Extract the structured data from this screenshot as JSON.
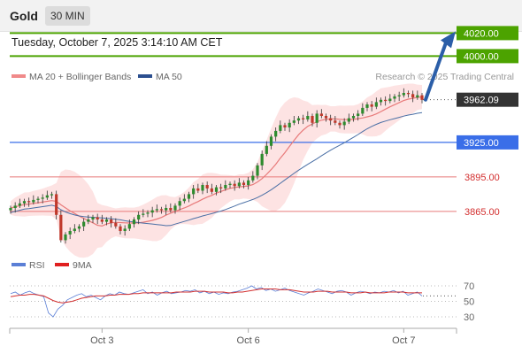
{
  "header": {
    "instrument": "Gold",
    "timeframe": "30 MIN"
  },
  "datetime": "Tuesday, October 7, 2025 3:14:10 AM CET",
  "legend": {
    "ma20": "MA 20 + Bollinger Bands",
    "ma50": "MA 50",
    "source": "Research © 2025 Trading Central"
  },
  "rsi_legend": {
    "rsi": "RSI",
    "ma9": "9MA"
  },
  "colors": {
    "resistance": "#4ca300",
    "support": "#e87a7a",
    "pivot": "#3a6ee8",
    "price_tag": "#333333",
    "arrow": "#2b5ea8",
    "candle_up": "#2e8b2e",
    "candle_down": "#c0392b",
    "ma20": "#e87a7a",
    "ma50": "#4a6fa5",
    "rsi": "#5b7fd6",
    "rsi_ma": "#d23030",
    "band_fill": "#fde3e3"
  },
  "chart_data": [
    {
      "type": "candlestick",
      "x_axis": {
        "ticks": [
          "Oct 3",
          "Oct 6",
          "Oct 7"
        ]
      },
      "y_range": [
        3845,
        4025
      ],
      "levels": [
        {
          "label": "4020.00",
          "value": 4020.0,
          "kind": "resistance"
        },
        {
          "label": "4000.00",
          "value": 4000.0,
          "kind": "resistance"
        },
        {
          "label": "3962.09",
          "value": 3962.09,
          "kind": "last_price"
        },
        {
          "label": "3925.00",
          "value": 3925.0,
          "kind": "pivot"
        },
        {
          "label": "3895.00",
          "value": 3895.0,
          "kind": "support"
        },
        {
          "label": "3865.00",
          "value": 3865.0,
          "kind": "support"
        }
      ],
      "close": [
        3868,
        3870,
        3872,
        3874,
        3873,
        3875,
        3876,
        3877,
        3879,
        3880,
        3862,
        3840,
        3845,
        3848,
        3850,
        3852,
        3856,
        3858,
        3860,
        3858,
        3856,
        3858,
        3855,
        3852,
        3848,
        3850,
        3854,
        3858,
        3862,
        3863,
        3864,
        3866,
        3867,
        3866,
        3868,
        3866,
        3870,
        3874,
        3876,
        3880,
        3885,
        3883,
        3888,
        3885,
        3882,
        3886,
        3885,
        3888,
        3889,
        3887,
        3890,
        3888,
        3892,
        3896,
        3905,
        3915,
        3922,
        3930,
        3935,
        3940,
        3938,
        3942,
        3944,
        3946,
        3945,
        3948,
        3942,
        3950,
        3948,
        3946,
        3944,
        3942,
        3940,
        3943,
        3946,
        3948,
        3950,
        3955,
        3958,
        3956,
        3960,
        3962,
        3961,
        3963,
        3965,
        3966,
        3968,
        3967,
        3964,
        3966,
        3962
      ],
      "ma20_last": 3955,
      "ma50_last": 3940
    },
    {
      "type": "line",
      "title": "RSI",
      "y_ticks": [
        70,
        50,
        30
      ],
      "series": [
        {
          "name": "RSI",
          "values": [
            60,
            62,
            58,
            61,
            63,
            60,
            58,
            56,
            35,
            30,
            40,
            45,
            52,
            55,
            58,
            60,
            56,
            58,
            55,
            52,
            57,
            60,
            58,
            62,
            60,
            59,
            61,
            63,
            65,
            60,
            62,
            58,
            61,
            63,
            60,
            61,
            62,
            64,
            63,
            65,
            61,
            63,
            60,
            62,
            59,
            61,
            60,
            62,
            63,
            65,
            67,
            70,
            66,
            68,
            64,
            66,
            63,
            65,
            67,
            64,
            62,
            60,
            58,
            61,
            63,
            66,
            64,
            62,
            60,
            63,
            64,
            62,
            58,
            61,
            63,
            62,
            60,
            62,
            61,
            63,
            62,
            64,
            61,
            63,
            58,
            60,
            62,
            57
          ]
        },
        {
          "name": "9MA",
          "values": [
            56,
            57,
            58,
            58,
            59,
            59,
            58,
            57,
            54,
            51,
            49,
            48,
            49,
            50,
            52,
            54,
            55,
            56,
            57,
            57,
            57,
            58,
            58,
            59,
            59,
            59,
            60,
            60,
            61,
            61,
            61,
            61,
            61,
            61,
            61,
            62,
            62,
            62,
            62,
            63,
            63,
            63,
            62,
            62,
            62,
            62,
            61,
            61,
            62,
            62,
            63,
            64,
            65,
            66,
            66,
            66,
            66,
            65,
            65,
            65,
            64,
            63,
            62,
            62,
            62,
            63,
            63,
            63,
            62,
            62,
            62,
            62,
            61,
            61,
            61,
            62,
            61,
            61,
            61,
            61,
            62,
            62,
            62,
            62,
            61,
            61,
            61,
            61
          ]
        }
      ]
    }
  ]
}
